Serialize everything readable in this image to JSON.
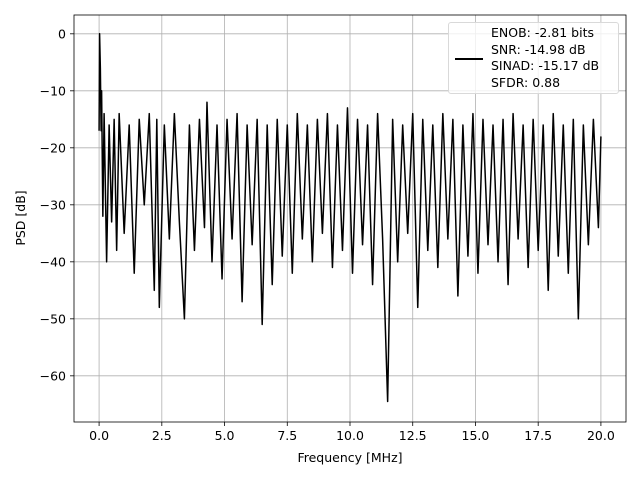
{
  "chart_data": {
    "type": "line",
    "xlabel": "Frequency [MHz]",
    "ylabel": "PSD [dB]",
    "xlim": [
      -1,
      21
    ],
    "ylim": [
      -68.1,
      3.3
    ],
    "xticks": [
      {
        "value": 0,
        "label": "0.0"
      },
      2.5,
      {
        "value": 5,
        "label": "5.0"
      },
      7.5,
      {
        "value": 10,
        "label": "10.0"
      },
      12.5,
      {
        "value": 15,
        "label": "15.0"
      },
      17.5,
      {
        "value": 20,
        "label": "20.0"
      }
    ],
    "yticks": [
      0,
      {
        "value": -10,
        "label": "−10"
      },
      {
        "value": -20,
        "label": "−20"
      },
      {
        "value": -30,
        "label": "−30"
      },
      {
        "value": -40,
        "label": "−40"
      },
      {
        "value": -50,
        "label": "−50"
      },
      {
        "value": -60,
        "label": "−60"
      }
    ],
    "grid": true,
    "legend": "upper right",
    "x": [
      0,
      0.02,
      0.05,
      0.08,
      0.1,
      0.15,
      0.2,
      0.3,
      0.4,
      0.5,
      0.6,
      0.7,
      0.8,
      1.0,
      1.2,
      1.4,
      1.6,
      1.8,
      2.0,
      2.2,
      2.3,
      2.4,
      2.6,
      2.8,
      3.0,
      3.2,
      3.4,
      3.6,
      3.8,
      4.0,
      4.2,
      4.3,
      4.5,
      4.7,
      4.9,
      5.1,
      5.3,
      5.5,
      5.7,
      5.9,
      6.1,
      6.3,
      6.5,
      6.7,
      6.9,
      7.1,
      7.3,
      7.5,
      7.7,
      7.9,
      8.1,
      8.3,
      8.5,
      8.7,
      8.9,
      9.1,
      9.3,
      9.5,
      9.7,
      9.9,
      10.1,
      10.3,
      10.5,
      10.7,
      10.9,
      11.1,
      11.3,
      11.5,
      11.7,
      11.9,
      12.1,
      12.3,
      12.5,
      12.7,
      12.9,
      13.1,
      13.3,
      13.5,
      13.7,
      13.9,
      14.1,
      14.3,
      14.5,
      14.7,
      14.9,
      15.1,
      15.3,
      15.5,
      15.7,
      15.9,
      16.1,
      16.3,
      16.5,
      16.7,
      16.9,
      17.1,
      17.3,
      17.5,
      17.7,
      17.9,
      18.1,
      18.3,
      18.5,
      18.7,
      18.9,
      19.1,
      19.3,
      19.5,
      19.7,
      19.9,
      20.0
    ],
    "series": [
      {
        "name": "ENOB: -2.81 bits\nSNR: -14.98 dB\nSINAD: -15.17 dB\nSFDR: 0.88",
        "color": "#000000",
        "values": [
          -17,
          0,
          -6,
          -17,
          -10,
          -32,
          -14,
          -40,
          -16,
          -33,
          -15,
          -38,
          -14,
          -35,
          -16,
          -42,
          -15,
          -30,
          -14,
          -45,
          -15,
          -48,
          -16,
          -36,
          -14,
          -33,
          -50,
          -16,
          -38,
          -15,
          -34,
          -12,
          -40,
          -16,
          -43,
          -15,
          -36,
          -14,
          -47,
          -16,
          -37,
          -15,
          -51,
          -16,
          -44,
          -15,
          -39,
          -16,
          -42,
          -14,
          -36,
          -16,
          -40,
          -15,
          -35,
          -14,
          -41,
          -16,
          -38,
          -13,
          -42,
          -15,
          -37,
          -16,
          -44,
          -14,
          -36,
          -64.5,
          -15,
          -40,
          -16,
          -35,
          -14,
          -48,
          -15,
          -38,
          -16,
          -41,
          -14,
          -36,
          -15,
          -46,
          -16,
          -39,
          -14,
          -42,
          -15,
          -37,
          -16,
          -40,
          -15,
          -44,
          -14,
          -36,
          -16,
          -41,
          -15,
          -38,
          -16,
          -45,
          -14,
          -39,
          -16,
          -42,
          -15,
          -50,
          -16,
          -37,
          -15,
          -34,
          -18
        ]
      }
    ]
  }
}
